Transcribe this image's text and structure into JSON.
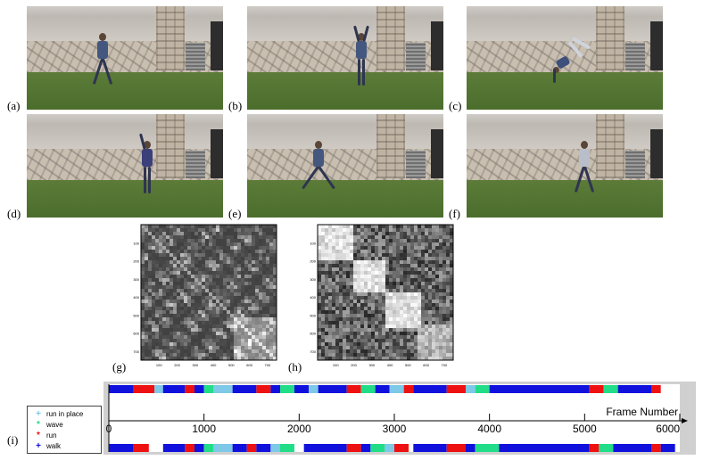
{
  "panels": {
    "a": "(a)",
    "b": "(b)",
    "c": "(c)",
    "d": "(d)",
    "e": "(e)",
    "f": "(f)",
    "g": "(g)",
    "h": "(h)",
    "i": "(i)"
  },
  "colors": {
    "run_in_place": "#7ec8e8",
    "wave": "#22dd88",
    "run": "#ee1111",
    "walk": "#1111dd"
  },
  "legend": {
    "items": [
      {
        "label": "run in place",
        "marker": "+",
        "color": "#7ec8e8"
      },
      {
        "label": "wave",
        "marker": "*",
        "color": "#22dd88"
      },
      {
        "label": "run",
        "marker": "*",
        "color": "#ee1111"
      },
      {
        "label": "walk",
        "marker": "+",
        "color": "#1111dd"
      }
    ]
  },
  "matrix_g": {
    "ticks_y": [
      "100",
      "200",
      "300",
      "400",
      "500",
      "600",
      "700"
    ],
    "ticks_x": [
      "100",
      "200",
      "300",
      "400",
      "500",
      "600",
      "700"
    ]
  },
  "matrix_h": {
    "ticks_y": [
      "100",
      "200",
      "300",
      "400",
      "500",
      "600",
      "700"
    ],
    "ticks_x": [
      "100",
      "200",
      "300",
      "400",
      "500",
      "600",
      "700"
    ]
  },
  "chart_data": {
    "type": "timeline",
    "xlabel": "Frame Number",
    "xlim": [
      0,
      6000
    ],
    "ticks": [
      0,
      1000,
      2000,
      3000,
      4000,
      5000,
      6000
    ],
    "tick_labels": [
      "0",
      "1000",
      "2000",
      "3000",
      "4000",
      "5000",
      "6000"
    ],
    "rows": [
      {
        "segments": [
          {
            "start": 0,
            "end": 260,
            "label": "walk"
          },
          {
            "start": 260,
            "end": 480,
            "label": "run"
          },
          {
            "start": 480,
            "end": 570,
            "label": "run in place"
          },
          {
            "start": 570,
            "end": 800,
            "label": "walk"
          },
          {
            "start": 800,
            "end": 900,
            "label": "run"
          },
          {
            "start": 900,
            "end": 1000,
            "label": "walk"
          },
          {
            "start": 1000,
            "end": 1100,
            "label": "wave"
          },
          {
            "start": 1100,
            "end": 1300,
            "label": "run in place"
          },
          {
            "start": 1300,
            "end": 1550,
            "label": "walk"
          },
          {
            "start": 1550,
            "end": 1700,
            "label": "run"
          },
          {
            "start": 1700,
            "end": 1800,
            "label": "walk"
          },
          {
            "start": 1800,
            "end": 1950,
            "label": "wave"
          },
          {
            "start": 1950,
            "end": 2100,
            "label": "walk"
          },
          {
            "start": 2100,
            "end": 2200,
            "label": "run in place"
          },
          {
            "start": 2200,
            "end": 2500,
            "label": "walk"
          },
          {
            "start": 2500,
            "end": 2650,
            "label": "run"
          },
          {
            "start": 2650,
            "end": 2800,
            "label": "wave"
          },
          {
            "start": 2800,
            "end": 2950,
            "label": "walk"
          },
          {
            "start": 2950,
            "end": 3100,
            "label": "run in place"
          },
          {
            "start": 3100,
            "end": 3200,
            "label": "run"
          },
          {
            "start": 3200,
            "end": 3550,
            "label": "walk"
          },
          {
            "start": 3550,
            "end": 3750,
            "label": "run"
          },
          {
            "start": 3750,
            "end": 3850,
            "label": "run in place"
          },
          {
            "start": 3850,
            "end": 4000,
            "label": "wave"
          },
          {
            "start": 4000,
            "end": 5050,
            "label": "walk"
          },
          {
            "start": 5050,
            "end": 5200,
            "label": "run"
          },
          {
            "start": 5200,
            "end": 5350,
            "label": "wave"
          },
          {
            "start": 5350,
            "end": 5700,
            "label": "walk"
          },
          {
            "start": 5700,
            "end": 5800,
            "label": "run"
          }
        ]
      },
      {
        "segments": [
          {
            "start": 0,
            "end": 260,
            "label": "walk"
          },
          {
            "start": 260,
            "end": 420,
            "label": "run"
          },
          {
            "start": 570,
            "end": 800,
            "label": "walk"
          },
          {
            "start": 800,
            "end": 900,
            "label": "run"
          },
          {
            "start": 900,
            "end": 1000,
            "label": "walk"
          },
          {
            "start": 1000,
            "end": 1100,
            "label": "wave"
          },
          {
            "start": 1100,
            "end": 1300,
            "label": "run in place"
          },
          {
            "start": 1300,
            "end": 1450,
            "label": "walk"
          },
          {
            "start": 1450,
            "end": 1550,
            "label": "run"
          },
          {
            "start": 1550,
            "end": 1700,
            "label": "walk"
          },
          {
            "start": 1700,
            "end": 1800,
            "label": "run in place"
          },
          {
            "start": 1800,
            "end": 1950,
            "label": "wave"
          },
          {
            "start": 2050,
            "end": 2500,
            "label": "walk"
          },
          {
            "start": 2500,
            "end": 2650,
            "label": "run"
          },
          {
            "start": 2650,
            "end": 2750,
            "label": "walk"
          },
          {
            "start": 2750,
            "end": 2900,
            "label": "wave"
          },
          {
            "start": 2900,
            "end": 3000,
            "label": "run in place"
          },
          {
            "start": 3000,
            "end": 3150,
            "label": "run"
          },
          {
            "start": 3200,
            "end": 3550,
            "label": "walk"
          },
          {
            "start": 3550,
            "end": 3750,
            "label": "run"
          },
          {
            "start": 3750,
            "end": 3850,
            "label": "walk"
          },
          {
            "start": 3850,
            "end": 4100,
            "label": "wave"
          },
          {
            "start": 4100,
            "end": 5050,
            "label": "walk"
          },
          {
            "start": 5050,
            "end": 5150,
            "label": "run"
          },
          {
            "start": 5150,
            "end": 5300,
            "label": "wave"
          },
          {
            "start": 5300,
            "end": 5700,
            "label": "walk"
          },
          {
            "start": 5700,
            "end": 5800,
            "label": "run"
          },
          {
            "start": 5800,
            "end": 5950,
            "label": "walk"
          }
        ]
      }
    ]
  }
}
